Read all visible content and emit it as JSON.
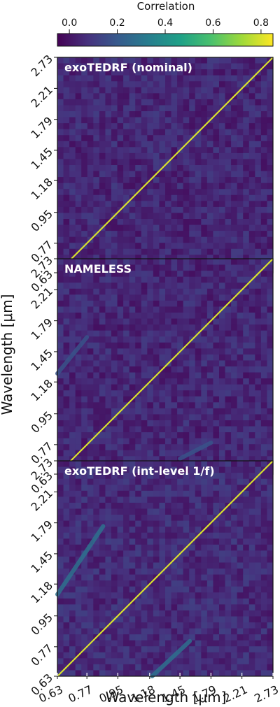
{
  "chart_data": [
    {
      "type": "heatmap",
      "title": "exoTEDRF (nominal)",
      "xlabel": "",
      "ylabel": "",
      "axis_ticks": [
        "0.63",
        "0.77",
        "0.95",
        "1.18",
        "1.45",
        "1.79",
        "2.21",
        "2.73"
      ],
      "diagonal_value": 0.8,
      "background_value": 0.05,
      "off_diagonal_features": []
    },
    {
      "type": "heatmap",
      "title": "NAMELESS",
      "xlabel": "",
      "ylabel": "Wavelength [μm]",
      "axis_ticks": [
        "0.63",
        "0.77",
        "0.95",
        "1.18",
        "1.45",
        "1.79",
        "2.21",
        "2.73"
      ],
      "diagonal_value": 0.8,
      "background_value": 0.05,
      "off_diagonal_features": [
        {
          "x_start": 0.63,
          "x_end": 0.77,
          "y_start": 1.25,
          "y_end": 1.6,
          "value": 0.18
        },
        {
          "x_start": 1.45,
          "x_end": 1.79,
          "y_start": 0.7,
          "y_end": 0.78,
          "value": 0.18
        }
      ]
    },
    {
      "type": "heatmap",
      "title": "exoTEDRF (int-level 1/f)",
      "xlabel": "Wavelength [μm]",
      "ylabel": "",
      "axis_ticks": [
        "0.63",
        "0.77",
        "0.95",
        "1.18",
        "1.45",
        "1.79",
        "2.21",
        "2.73"
      ],
      "diagonal_value": 0.8,
      "background_value": 0.06,
      "off_diagonal_features": [
        {
          "x_start": 0.63,
          "x_end": 0.86,
          "y_start": 1.1,
          "y_end": 1.75,
          "value": 0.28
        },
        {
          "x_start": 1.2,
          "x_end": 1.55,
          "y_start": 0.63,
          "y_end": 0.8,
          "value": 0.28
        }
      ]
    }
  ],
  "colorbar": {
    "label": "Correlation",
    "ticks": [
      "0.0",
      "0.2",
      "0.4",
      "0.6",
      "0.8"
    ],
    "range": [
      -0.05,
      0.85
    ],
    "colormap": "viridis",
    "colors": [
      "#440154",
      "#46327e",
      "#365c8d",
      "#277f8e",
      "#1fa187",
      "#4ac16d",
      "#a0da39",
      "#fde725"
    ]
  }
}
